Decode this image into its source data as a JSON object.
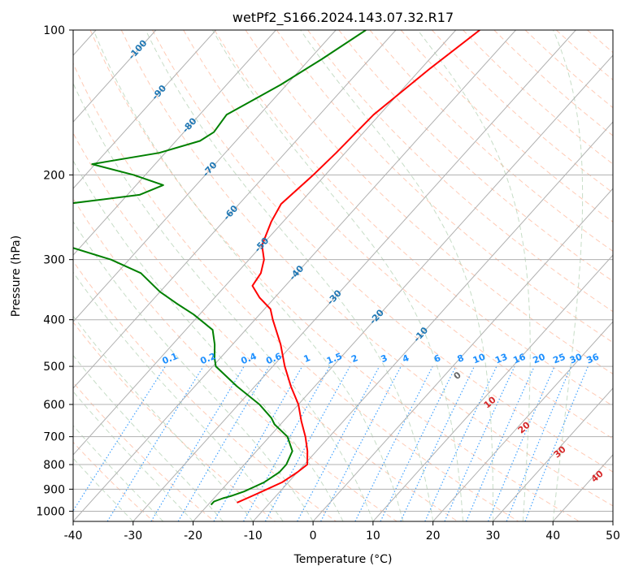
{
  "chart_data": {
    "type": "line",
    "title": "wetPf2_S166.2024.143.07.32.R17",
    "xlabel": "Temperature (°C)",
    "ylabel": "Pressure (hPa)",
    "xlim": [
      -40,
      50
    ],
    "ylim": [
      1050,
      100
    ],
    "y_scale": "log",
    "grid": true,
    "x_ticks": [
      -40,
      -30,
      -20,
      -10,
      0,
      10,
      20,
      30,
      40,
      50
    ],
    "y_ticks": [
      100,
      200,
      300,
      400,
      500,
      600,
      700,
      800,
      900,
      1000
    ],
    "colors": {
      "temperature": "#ff0000",
      "dewpoint": "#008000",
      "isotherm_labels": "#1f77b4",
      "mixing_ratio": "#1e90ff",
      "dry_adiabat": "#ffa07a",
      "moist_adiabat": "#8fbc8f",
      "moist_adiabat_label": "#d62728",
      "grid": "#b0b0b0"
    },
    "series": [
      {
        "key": "temperature",
        "pressure": [
          100,
          120,
          150,
          180,
          200,
          230,
          250,
          280,
          300,
          320,
          340,
          360,
          380,
          400,
          450,
          500,
          550,
          600,
          650,
          700,
          750,
          800,
          830,
          850,
          870,
          900,
          920,
          940,
          960
        ],
        "values": [
          -46,
          -48.5,
          -51,
          -51.5,
          -52,
          -53,
          -52,
          -50,
          -47.5,
          -46,
          -45.5,
          -42.5,
          -39,
          -37,
          -32,
          -28,
          -24,
          -20,
          -17,
          -14,
          -11.5,
          -9.5,
          -10,
          -10.5,
          -11,
          -12.5,
          -13.5,
          -14.5,
          -15.5
        ]
      },
      {
        "key": "dewpoint",
        "pressure": [
          100,
          115,
          130,
          150,
          163,
          170,
          180,
          190,
          200,
          210,
          220,
          230,
          240,
          250,
          260,
          280,
          300,
          320,
          350,
          370,
          390,
          420,
          450,
          480,
          500,
          550,
          600,
          640,
          660,
          700,
          750,
          800,
          830,
          850,
          870,
          890,
          910,
          930,
          940,
          955,
          970
        ],
        "values": [
          -65,
          -68,
          -71,
          -75.5,
          -75,
          -76,
          -81,
          -90.5,
          -82,
          -75.5,
          -78,
          -89,
          -97,
          -100,
          -101,
          -83,
          -73,
          -66,
          -60,
          -55.5,
          -51,
          -45.5,
          -43,
          -41,
          -39.5,
          -33,
          -26.5,
          -22.5,
          -21,
          -17,
          -14,
          -13,
          -13,
          -13.5,
          -14,
          -15,
          -16,
          -17.5,
          -18.5,
          -19.5,
          -19.5
        ]
      }
    ],
    "isotherm_labels": [
      "-100",
      "-90",
      "-80",
      "-70",
      "-60",
      "-50",
      "-40",
      "-30",
      "-20",
      "-10"
    ],
    "mixing_ratio_labels": [
      "0.1",
      "0.2",
      "0.4",
      "0.6",
      "1",
      "1.5",
      "2",
      "3",
      "4",
      "6",
      "8",
      "10",
      "13",
      "16",
      "20",
      "25",
      "30",
      "36"
    ],
    "moist_adiabat_labels": [
      "0",
      "10",
      "20",
      "30",
      "40"
    ]
  }
}
